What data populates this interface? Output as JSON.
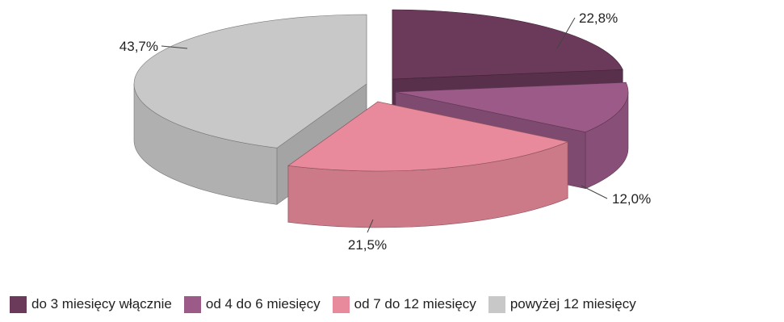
{
  "chart_data": {
    "type": "pie",
    "title": "",
    "slices": [
      {
        "label": "do 3 miesięcy włącznie",
        "value": 22.8,
        "value_label": "22,8%",
        "color": "#6b3a5b"
      },
      {
        "label": "od 4 do 6 miesięcy",
        "value": 12.0,
        "value_label": "12,0%",
        "color": "#9b5a88"
      },
      {
        "label": "od 7 do 12 miesięcy",
        "value": 21.5,
        "value_label": "21,5%",
        "color": "#e88a9b"
      },
      {
        "label": "powyżej 12 miesięcy",
        "value": 43.7,
        "value_label": "43,7%",
        "color": "#c8c8c8"
      }
    ],
    "style": "3d-exploded",
    "legend_position": "bottom"
  }
}
